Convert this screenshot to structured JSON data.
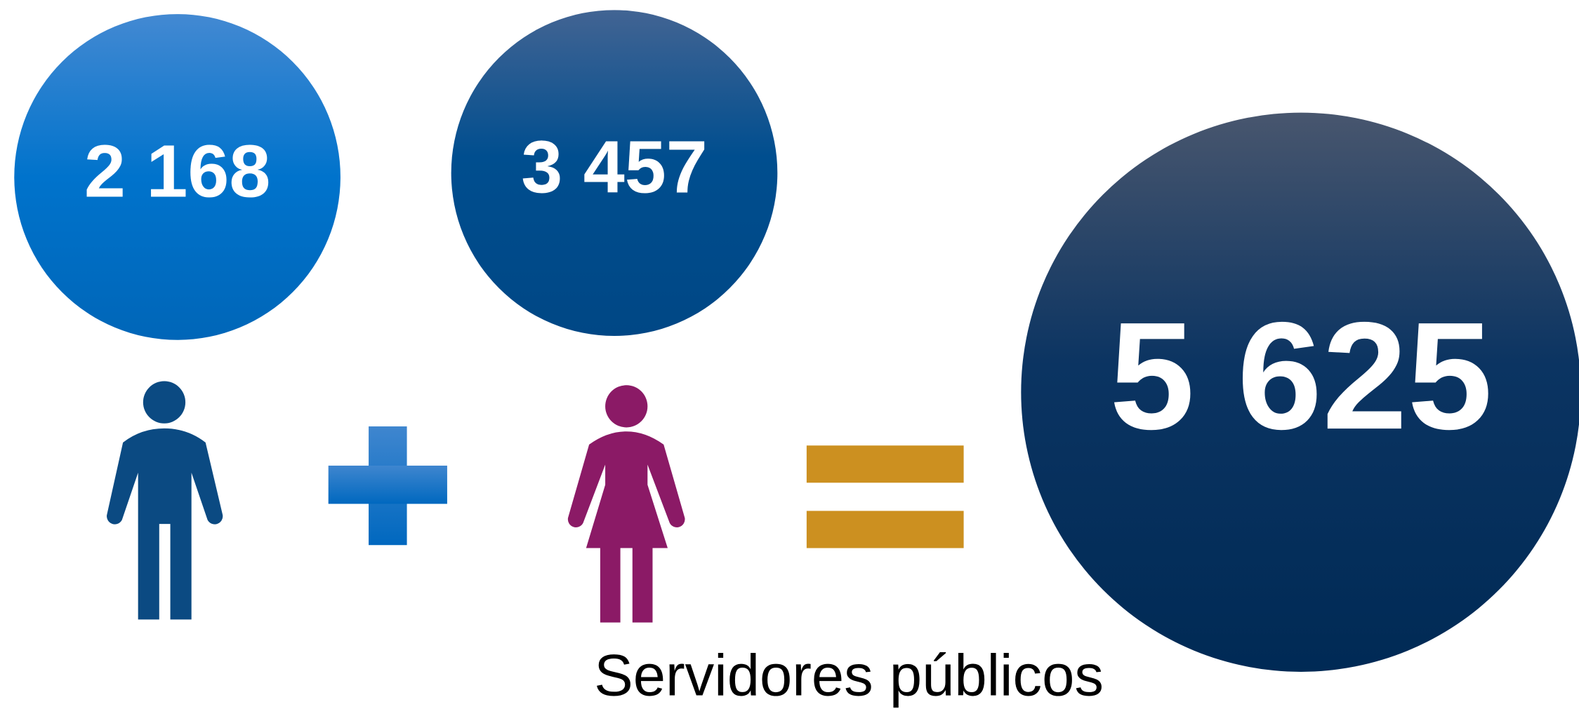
{
  "men": {
    "count": "2 168"
  },
  "women": {
    "count": "3 457"
  },
  "total": {
    "count": "5 625"
  },
  "caption": "Servidores públicos"
}
